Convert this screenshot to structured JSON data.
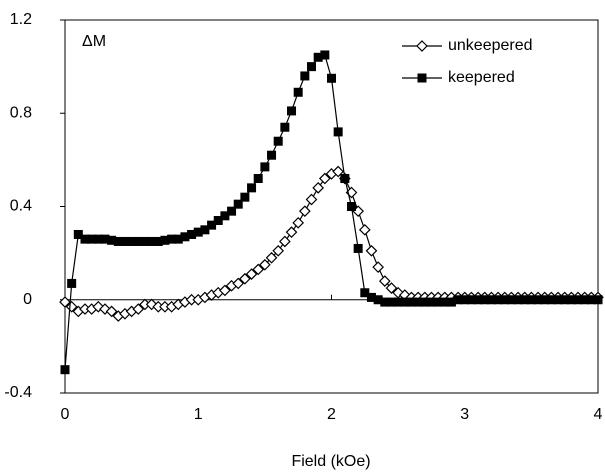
{
  "chart_data": {
    "type": "line",
    "annotation": "ΔM",
    "xlabel": "Field (kOe)",
    "x": [
      0,
      0.05,
      0.1,
      0.15,
      0.2,
      0.25,
      0.3,
      0.35,
      0.4,
      0.45,
      0.5,
      0.55,
      0.6,
      0.65,
      0.7,
      0.75,
      0.8,
      0.85,
      0.9,
      0.95,
      1,
      1.05,
      1.1,
      1.15,
      1.2,
      1.25,
      1.3,
      1.35,
      1.4,
      1.45,
      1.5,
      1.55,
      1.6,
      1.65,
      1.7,
      1.75,
      1.8,
      1.85,
      1.9,
      1.95,
      2,
      2.05,
      2.1,
      2.15,
      2.2,
      2.25,
      2.3,
      2.35,
      2.4,
      2.45,
      2.5,
      2.55,
      2.6,
      2.65,
      2.7,
      2.75,
      2.8,
      2.85,
      2.9,
      2.95,
      3,
      3.05,
      3.1,
      3.15,
      3.2,
      3.25,
      3.3,
      3.35,
      3.4,
      3.45,
      3.5,
      3.55,
      3.6,
      3.65,
      3.7,
      3.75,
      3.8,
      3.85,
      3.9,
      3.95,
      4
    ],
    "series": [
      {
        "name": "unkeepered",
        "color": "#000000",
        "marker": "diamond-open",
        "values": [
          -0.01,
          -0.03,
          -0.05,
          -0.04,
          -0.04,
          -0.03,
          -0.04,
          -0.05,
          -0.07,
          -0.06,
          -0.05,
          -0.04,
          -0.02,
          -0.02,
          -0.03,
          -0.03,
          -0.03,
          -0.02,
          -0.01,
          0,
          0,
          0.01,
          0.02,
          0.03,
          0.04,
          0.06,
          0.07,
          0.09,
          0.11,
          0.13,
          0.15,
          0.18,
          0.21,
          0.25,
          0.29,
          0.33,
          0.38,
          0.43,
          0.48,
          0.52,
          0.54,
          0.55,
          0.52,
          0.46,
          0.38,
          0.3,
          0.21,
          0.14,
          0.08,
          0.05,
          0.03,
          0.02,
          0.01,
          0.01,
          0.01,
          0.01,
          0.01,
          0.01,
          0.01,
          0.01,
          0.01,
          0.01,
          0.01,
          0.01,
          0.01,
          0.01,
          0.01,
          0.01,
          0.01,
          0.01,
          0.01,
          0.01,
          0.01,
          0.01,
          0.01,
          0.01,
          0.01,
          0.01,
          0.01,
          0.01,
          0.01
        ]
      },
      {
        "name": "keepered",
        "color": "#000000",
        "marker": "square-filled",
        "values": [
          -0.3,
          0.07,
          0.28,
          0.26,
          0.26,
          0.26,
          0.26,
          0.255,
          0.25,
          0.25,
          0.25,
          0.25,
          0.25,
          0.25,
          0.25,
          0.255,
          0.26,
          0.26,
          0.27,
          0.28,
          0.29,
          0.3,
          0.32,
          0.34,
          0.36,
          0.38,
          0.41,
          0.44,
          0.48,
          0.52,
          0.57,
          0.62,
          0.68,
          0.74,
          0.81,
          0.89,
          0.96,
          1.0,
          1.04,
          1.05,
          0.95,
          0.72,
          0.52,
          0.4,
          0.22,
          0.03,
          0.01,
          0,
          -0.01,
          -0.01,
          -0.01,
          -0.01,
          -0.01,
          -0.01,
          -0.01,
          -0.01,
          -0.01,
          -0.01,
          -0.01,
          0,
          0,
          0,
          0,
          0,
          0,
          0,
          0,
          0,
          0,
          0,
          0,
          0,
          0,
          0,
          0,
          0,
          0,
          0,
          0,
          0,
          0
        ]
      }
    ],
    "xlim": [
      0,
      4
    ],
    "xticks": [
      0,
      1,
      2,
      3,
      4
    ],
    "ylim": [
      -0.4,
      1.2
    ],
    "yticks": [
      -0.4,
      0,
      0.4,
      0.8,
      1.2
    ],
    "legend": "upper right",
    "grid": false
  }
}
